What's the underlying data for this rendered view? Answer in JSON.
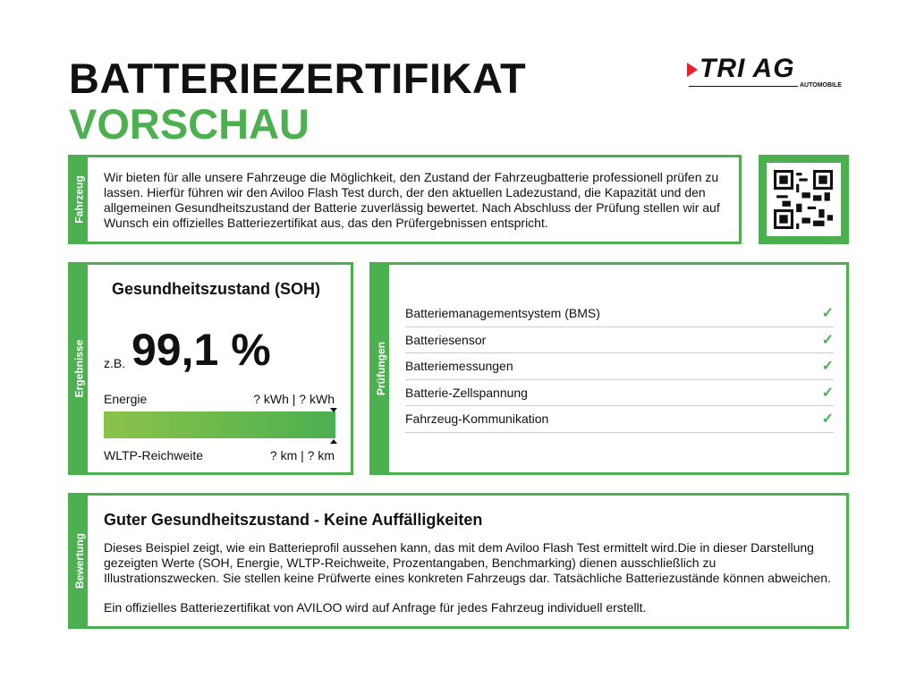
{
  "header": {
    "title": "BATTERIEZERTIFIKAT",
    "subtitle": "VORSCHAU"
  },
  "logo": {
    "text": "TRI AG",
    "sub": "AUTOMOBILE",
    "accent": "#e5202b"
  },
  "colors": {
    "accent": "#4caf50"
  },
  "fahrzeug": {
    "label": "Fahrzeug",
    "text": "Wir bieten für alle unsere Fahrzeuge die Möglichkeit, den Zustand der Fahrzeugbatterie professionell prüfen zu lassen. Hierfür führen wir den Aviloo Flash Test durch, der den aktuellen Ladezustand, die Kapazität und den allgemeinen Gesundheitszustand der Batterie zuverlässig bewertet. Nach Abschluss der Prüfung stellen wir auf Wunsch ein offizielles Batteriezertifikat aus, das den Prüfergebnissen entspricht."
  },
  "qr": {
    "icon": "qr-code-icon"
  },
  "ergebnisse": {
    "label": "Ergebnisse",
    "title": "Gesundheitszustand (SOH)",
    "prefix": "z.B.",
    "value": "99,1 %",
    "energy_label": "Energie",
    "energy_value": "? kWh | ? kWh",
    "range_label": "WLTP-Reichweite",
    "range_value": "? km | ? km"
  },
  "pruefungen": {
    "label": "Prüfungen",
    "items": [
      {
        "label": "Batteriemanagementsystem (BMS)",
        "status": "check"
      },
      {
        "label": "Batteriesensor",
        "status": "check"
      },
      {
        "label": "Batteriemessungen",
        "status": "check"
      },
      {
        "label": "Batterie-Zellspannung",
        "status": "check"
      },
      {
        "label": "Fahrzeug-Kommunikation",
        "status": "check"
      }
    ]
  },
  "bewertung": {
    "label": "Bewertung",
    "title": "Guter Gesundheitszustand - Keine Auffälligkeiten",
    "text": "Dieses Beispiel zeigt, wie ein Batterieprofil aussehen kann, das mit dem Aviloo Flash Test ermittelt wird.Die in dieser Darstellung gezeigten Werte (SOH, Energie, WLTP-Reichweite, Prozentangaben, Benchmarking) dienen ausschließlich zu Illustrationszwecken. Sie stellen keine Prüfwerte eines konkreten Fahrzeugs dar. Tatsächliche Batteriezustände können abweichen.",
    "note": "Ein offizielles Batteriezertifikat von AVILOO wird auf Anfrage für jedes Fahrzeug individuell erstellt."
  }
}
